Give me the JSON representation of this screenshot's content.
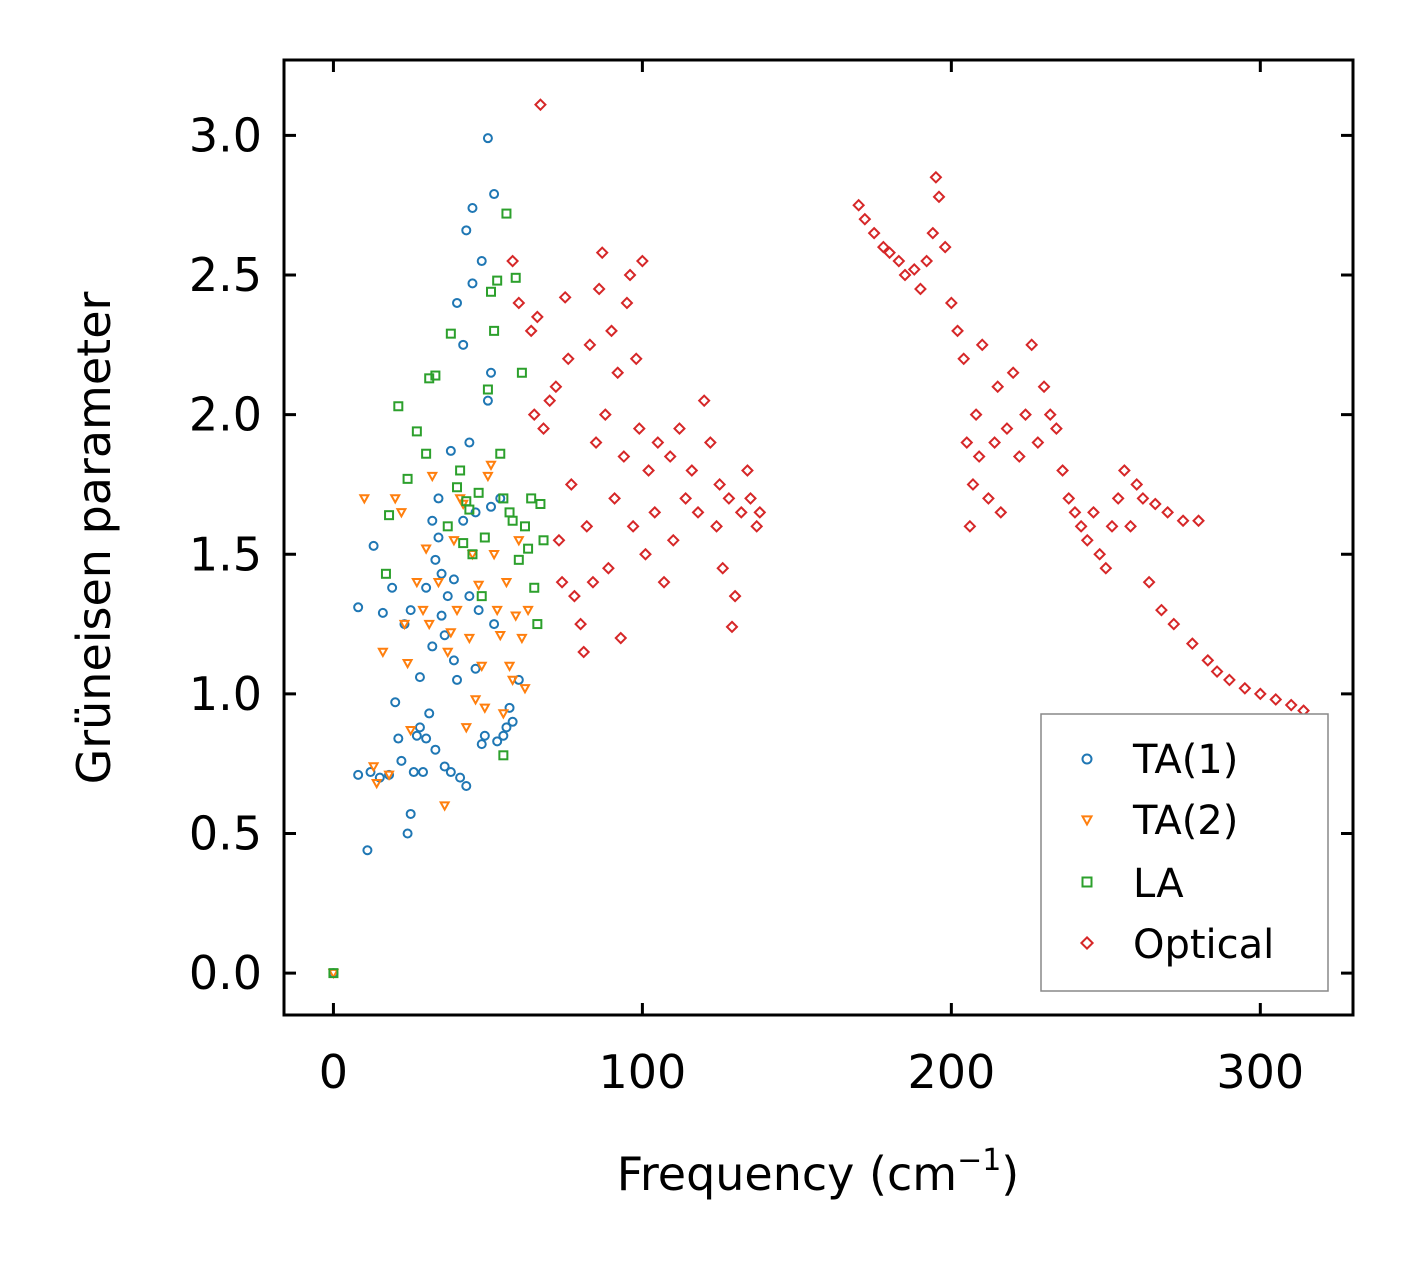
{
  "chart_data": {
    "type": "scatter",
    "title": "",
    "xlabel": "Frequency (cm",
    "xlabel_sup": "−1",
    "xlabel_close": ")",
    "ylabel": "Grüneisen parameter",
    "xlim": [
      -16,
      330
    ],
    "ylim": [
      -0.15,
      3.27
    ],
    "xticks": [
      0,
      100,
      200,
      300
    ],
    "xtick_labels": [
      "0",
      "100",
      "200",
      "300"
    ],
    "yticks": [
      0.0,
      0.5,
      1.0,
      1.5,
      2.0,
      2.5,
      3.0
    ],
    "ytick_labels": [
      "0.0",
      "0.5",
      "1.0",
      "1.5",
      "2.0",
      "2.5",
      "3.0"
    ],
    "legend_position": "lower-right",
    "series": [
      {
        "name": "TA(1)",
        "marker": "circle",
        "color": "#1f77b4",
        "points": [
          [
            0,
            0.0
          ],
          [
            11,
            0.44
          ],
          [
            12,
            0.72
          ],
          [
            13,
            1.53
          ],
          [
            15,
            0.7
          ],
          [
            8,
            0.71
          ],
          [
            8,
            1.31
          ],
          [
            16,
            1.29
          ],
          [
            18,
            0.71
          ],
          [
            19,
            1.38
          ],
          [
            20,
            0.97
          ],
          [
            21,
            0.84
          ],
          [
            22,
            0.76
          ],
          [
            23,
            1.25
          ],
          [
            24,
            0.5
          ],
          [
            25,
            0.57
          ],
          [
            25,
            1.3
          ],
          [
            26,
            0.72
          ],
          [
            27,
            0.85
          ],
          [
            28,
            0.88
          ],
          [
            28,
            1.06
          ],
          [
            29,
            0.72
          ],
          [
            30,
            0.84
          ],
          [
            30,
            1.38
          ],
          [
            31,
            0.93
          ],
          [
            32,
            1.62
          ],
          [
            32,
            1.17
          ],
          [
            33,
            1.48
          ],
          [
            33,
            0.8
          ],
          [
            34,
            1.56
          ],
          [
            34,
            1.7
          ],
          [
            35,
            1.28
          ],
          [
            35,
            1.43
          ],
          [
            36,
            0.74
          ],
          [
            36,
            1.21
          ],
          [
            37,
            1.35
          ],
          [
            38,
            0.72
          ],
          [
            38,
            1.87
          ],
          [
            39,
            1.12
          ],
          [
            39,
            1.41
          ],
          [
            40,
            1.05
          ],
          [
            40,
            2.4
          ],
          [
            41,
            0.7
          ],
          [
            42,
            1.62
          ],
          [
            42,
            2.25
          ],
          [
            43,
            2.66
          ],
          [
            43,
            0.67
          ],
          [
            44,
            1.9
          ],
          [
            44,
            1.35
          ],
          [
            45,
            2.47
          ],
          [
            45,
            2.74
          ],
          [
            46,
            1.09
          ],
          [
            46,
            1.65
          ],
          [
            47,
            1.3
          ],
          [
            48,
            2.55
          ],
          [
            48,
            0.82
          ],
          [
            49,
            0.85
          ],
          [
            50,
            2.99
          ],
          [
            50,
            2.05
          ],
          [
            51,
            1.67
          ],
          [
            51,
            2.15
          ],
          [
            52,
            2.79
          ],
          [
            52,
            1.25
          ],
          [
            53,
            0.83
          ],
          [
            54,
            1.7
          ],
          [
            55,
            0.85
          ],
          [
            56,
            0.88
          ],
          [
            57,
            0.95
          ],
          [
            58,
            0.9
          ],
          [
            60,
            1.05
          ]
        ]
      },
      {
        "name": "TA(2)",
        "marker": "triangle-down",
        "color": "#ff7f0e",
        "points": [
          [
            0,
            0.0
          ],
          [
            10,
            1.7
          ],
          [
            13,
            0.74
          ],
          [
            14,
            0.68
          ],
          [
            16,
            1.15
          ],
          [
            18,
            0.71
          ],
          [
            20,
            1.7
          ],
          [
            22,
            1.65
          ],
          [
            23,
            1.25
          ],
          [
            24,
            1.11
          ],
          [
            25,
            0.87
          ],
          [
            27,
            1.4
          ],
          [
            29,
            1.3
          ],
          [
            30,
            1.52
          ],
          [
            31,
            1.25
          ],
          [
            32,
            1.78
          ],
          [
            34,
            1.4
          ],
          [
            36,
            0.6
          ],
          [
            37,
            1.15
          ],
          [
            38,
            1.22
          ],
          [
            39,
            1.55
          ],
          [
            40,
            1.3
          ],
          [
            41,
            1.7
          ],
          [
            42,
            1.68
          ],
          [
            43,
            0.88
          ],
          [
            44,
            1.2
          ],
          [
            45,
            1.5
          ],
          [
            46,
            0.98
          ],
          [
            47,
            1.39
          ],
          [
            48,
            1.1
          ],
          [
            49,
            0.95
          ],
          [
            50,
            1.78
          ],
          [
            51,
            1.82
          ],
          [
            52,
            1.5
          ],
          [
            53,
            1.3
          ],
          [
            54,
            1.21
          ],
          [
            55,
            0.93
          ],
          [
            56,
            1.4
          ],
          [
            57,
            1.1
          ],
          [
            58,
            1.05
          ],
          [
            59,
            1.28
          ],
          [
            60,
            1.55
          ],
          [
            61,
            1.2
          ],
          [
            62,
            1.02
          ],
          [
            63,
            1.3
          ]
        ]
      },
      {
        "name": "LA",
        "marker": "square",
        "color": "#2ca02c",
        "points": [
          [
            0,
            0.0
          ],
          [
            17,
            1.43
          ],
          [
            18,
            1.64
          ],
          [
            21,
            2.03
          ],
          [
            24,
            1.77
          ],
          [
            27,
            1.94
          ],
          [
            30,
            1.86
          ],
          [
            31,
            2.13
          ],
          [
            33,
            2.14
          ],
          [
            37,
            1.6
          ],
          [
            38,
            2.29
          ],
          [
            40,
            1.74
          ],
          [
            41,
            1.8
          ],
          [
            42,
            1.54
          ],
          [
            43,
            1.69
          ],
          [
            44,
            1.66
          ],
          [
            45,
            1.5
          ],
          [
            47,
            1.72
          ],
          [
            48,
            1.35
          ],
          [
            49,
            1.56
          ],
          [
            50,
            2.09
          ],
          [
            51,
            2.44
          ],
          [
            52,
            2.3
          ],
          [
            53,
            2.48
          ],
          [
            54,
            1.86
          ],
          [
            55,
            1.7
          ],
          [
            56,
            2.72
          ],
          [
            57,
            1.65
          ],
          [
            58,
            1.62
          ],
          [
            59,
            2.49
          ],
          [
            60,
            1.48
          ],
          [
            61,
            2.15
          ],
          [
            62,
            1.6
          ],
          [
            63,
            1.52
          ],
          [
            64,
            1.7
          ],
          [
            65,
            1.38
          ],
          [
            66,
            1.25
          ],
          [
            67,
            1.68
          ],
          [
            68,
            1.55
          ],
          [
            55,
            0.78
          ]
        ]
      },
      {
        "name": "Optical",
        "marker": "diamond",
        "color": "#d62728",
        "points": [
          [
            67,
            3.11
          ],
          [
            58,
            2.55
          ],
          [
            60,
            2.4
          ],
          [
            64,
            2.3
          ],
          [
            66,
            2.35
          ],
          [
            65,
            2.0
          ],
          [
            68,
            1.95
          ],
          [
            70,
            2.05
          ],
          [
            72,
            2.1
          ],
          [
            73,
            1.55
          ],
          [
            74,
            1.4
          ],
          [
            75,
            2.42
          ],
          [
            76,
            2.2
          ],
          [
            77,
            1.75
          ],
          [
            78,
            1.35
          ],
          [
            80,
            1.25
          ],
          [
            81,
            1.15
          ],
          [
            82,
            1.6
          ],
          [
            83,
            2.25
          ],
          [
            84,
            1.4
          ],
          [
            85,
            1.9
          ],
          [
            86,
            2.45
          ],
          [
            87,
            2.58
          ],
          [
            88,
            2.0
          ],
          [
            89,
            1.45
          ],
          [
            90,
            2.3
          ],
          [
            91,
            1.7
          ],
          [
            92,
            2.15
          ],
          [
            93,
            1.2
          ],
          [
            94,
            1.85
          ],
          [
            95,
            2.4
          ],
          [
            96,
            2.5
          ],
          [
            97,
            1.6
          ],
          [
            98,
            2.2
          ],
          [
            99,
            1.95
          ],
          [
            100,
            2.55
          ],
          [
            101,
            1.5
          ],
          [
            102,
            1.8
          ],
          [
            104,
            1.65
          ],
          [
            105,
            1.9
          ],
          [
            107,
            1.4
          ],
          [
            109,
            1.85
          ],
          [
            110,
            1.55
          ],
          [
            112,
            1.95
          ],
          [
            114,
            1.7
          ],
          [
            116,
            1.8
          ],
          [
            118,
            1.65
          ],
          [
            120,
            2.05
          ],
          [
            122,
            1.9
          ],
          [
            124,
            1.6
          ],
          [
            125,
            1.75
          ],
          [
            126,
            1.45
          ],
          [
            128,
            1.7
          ],
          [
            129,
            1.24
          ],
          [
            130,
            1.35
          ],
          [
            132,
            1.65
          ],
          [
            134,
            1.8
          ],
          [
            135,
            1.7
          ],
          [
            137,
            1.6
          ],
          [
            138,
            1.65
          ],
          [
            170,
            2.75
          ],
          [
            172,
            2.7
          ],
          [
            175,
            2.65
          ],
          [
            178,
            2.6
          ],
          [
            180,
            2.58
          ],
          [
            183,
            2.55
          ],
          [
            185,
            2.5
          ],
          [
            188,
            2.52
          ],
          [
            190,
            2.45
          ],
          [
            192,
            2.55
          ],
          [
            194,
            2.65
          ],
          [
            195,
            2.85
          ],
          [
            196,
            2.78
          ],
          [
            198,
            2.6
          ],
          [
            200,
            2.4
          ],
          [
            202,
            2.3
          ],
          [
            204,
            2.2
          ],
          [
            205,
            1.9
          ],
          [
            206,
            1.6
          ],
          [
            207,
            1.75
          ],
          [
            208,
            2.0
          ],
          [
            209,
            1.85
          ],
          [
            210,
            2.25
          ],
          [
            212,
            1.7
          ],
          [
            214,
            1.9
          ],
          [
            215,
            2.1
          ],
          [
            216,
            1.65
          ],
          [
            218,
            1.95
          ],
          [
            220,
            2.15
          ],
          [
            222,
            1.85
          ],
          [
            224,
            2.0
          ],
          [
            226,
            2.25
          ],
          [
            228,
            1.9
          ],
          [
            230,
            2.1
          ],
          [
            232,
            2.0
          ],
          [
            234,
            1.95
          ],
          [
            236,
            1.8
          ],
          [
            238,
            1.7
          ],
          [
            240,
            1.65
          ],
          [
            242,
            1.6
          ],
          [
            244,
            1.55
          ],
          [
            246,
            1.65
          ],
          [
            248,
            1.5
          ],
          [
            250,
            1.45
          ],
          [
            252,
            1.6
          ],
          [
            254,
            1.7
          ],
          [
            256,
            1.8
          ],
          [
            258,
            1.6
          ],
          [
            260,
            1.75
          ],
          [
            262,
            1.7
          ],
          [
            264,
            1.4
          ],
          [
            266,
            1.68
          ],
          [
            268,
            1.3
          ],
          [
            270,
            1.65
          ],
          [
            272,
            1.25
          ],
          [
            275,
            1.62
          ],
          [
            278,
            1.18
          ],
          [
            280,
            1.62
          ],
          [
            283,
            1.12
          ],
          [
            286,
            1.08
          ],
          [
            290,
            1.05
          ],
          [
            295,
            1.02
          ],
          [
            300,
            1.0
          ],
          [
            305,
            0.98
          ],
          [
            310,
            0.96
          ],
          [
            314,
            0.94
          ]
        ]
      }
    ]
  }
}
